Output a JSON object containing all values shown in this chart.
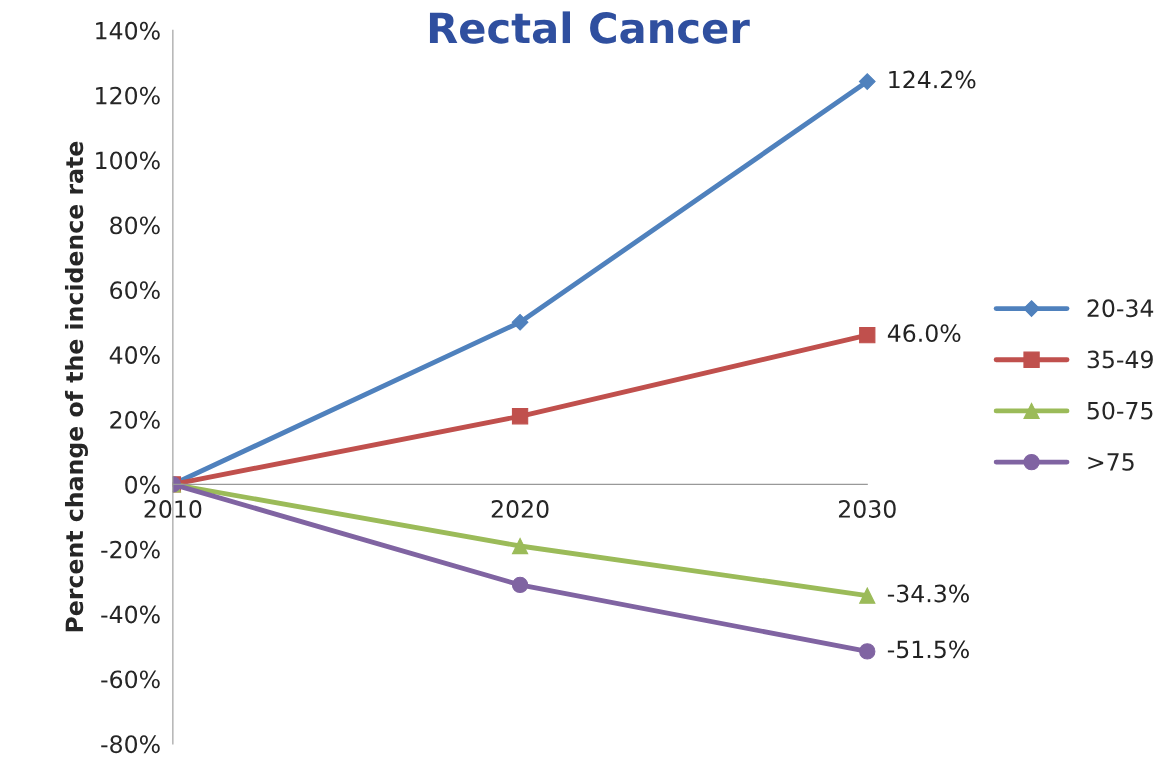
{
  "chart_data": {
    "type": "line",
    "title": "Rectal Cancer",
    "ylabel": "Percent change of the incidence rate",
    "categories": [
      "2010",
      "2020",
      "2030"
    ],
    "series": [
      {
        "name": "20-34",
        "color": "#4f81bd",
        "marker": "diamond",
        "values": [
          0,
          50,
          124.2
        ],
        "value_labels": [
          null,
          null,
          "124.2%"
        ]
      },
      {
        "name": "35-49",
        "color": "#c0504d",
        "marker": "square",
        "values": [
          0,
          21,
          46.0
        ],
        "value_labels": [
          null,
          null,
          "46.0%"
        ]
      },
      {
        "name": "50-75",
        "color": "#9bbb59",
        "marker": "triangle",
        "values": [
          0,
          -19,
          -34.3
        ],
        "value_labels": [
          null,
          null,
          "-34.3%"
        ]
      },
      {
        "name": ">75",
        "color": "#8064a2",
        "marker": "circle",
        "values": [
          0,
          -31,
          -51.5
        ],
        "value_labels": [
          null,
          null,
          "-51.5%"
        ]
      }
    ],
    "ylim": [
      -80,
      140
    ],
    "yticks": [
      {
        "value": -80,
        "label": "-80%"
      },
      {
        "value": -60,
        "label": "-60%"
      },
      {
        "value": -40,
        "label": "-40%"
      },
      {
        "value": -20,
        "label": "-20%"
      },
      {
        "value": 0,
        "label": "0%"
      },
      {
        "value": 20,
        "label": "20%"
      },
      {
        "value": 40,
        "label": "40%"
      },
      {
        "value": 60,
        "label": "60%"
      },
      {
        "value": 80,
        "label": "80%"
      },
      {
        "value": 100,
        "label": "100%"
      },
      {
        "value": 120,
        "label": "120%"
      },
      {
        "value": 140,
        "label": "140%"
      }
    ],
    "grid": false,
    "legend": "right",
    "line_style": "solid"
  }
}
